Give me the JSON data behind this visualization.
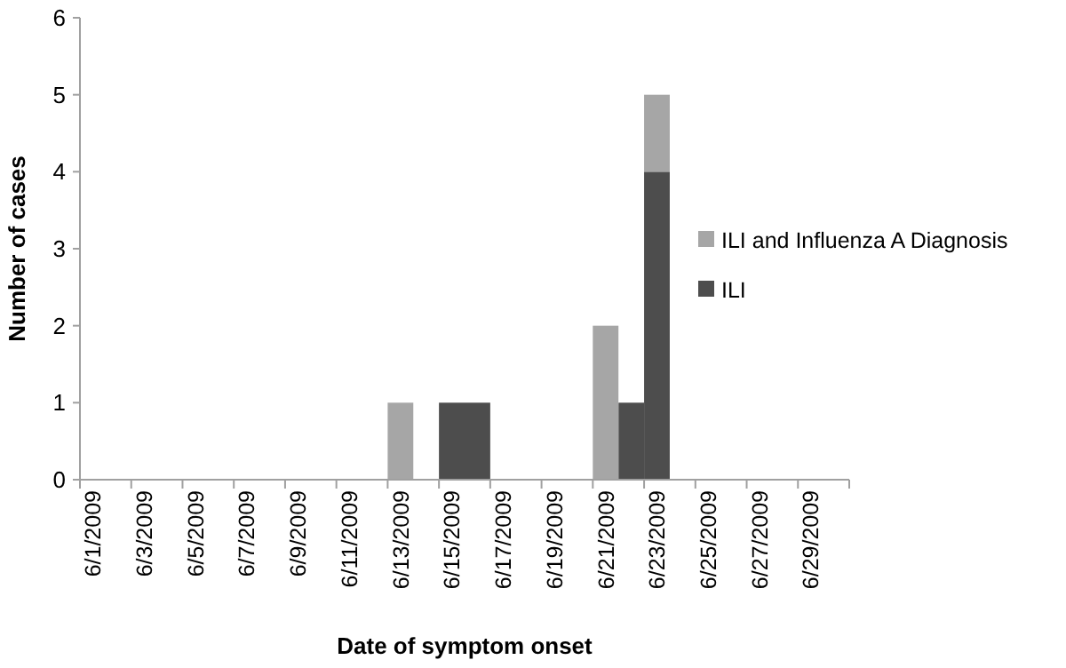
{
  "chart_data": {
    "type": "bar",
    "stacked": true,
    "xlabel": "Date of symptom onset",
    "ylabel": "Number of cases",
    "categories": [
      "6/1/2009",
      null,
      "6/3/2009",
      null,
      "6/5/2009",
      null,
      "6/7/2009",
      null,
      "6/9/2009",
      null,
      "6/11/2009",
      null,
      "6/13/2009",
      null,
      "6/15/2009",
      null,
      "6/17/2009",
      null,
      "6/19/2009",
      null,
      "6/21/2009",
      null,
      "6/23/2009",
      null,
      "6/25/2009",
      null,
      "6/27/2009",
      null,
      "6/29/2009",
      null
    ],
    "series": [
      {
        "name": "ILI",
        "color": "#4d4d4d",
        "values": [
          0,
          0,
          0,
          0,
          0,
          0,
          0,
          0,
          0,
          0,
          0,
          0,
          0,
          0,
          1,
          1,
          0,
          0,
          0,
          0,
          0,
          1,
          4,
          0,
          0,
          0,
          0,
          0,
          0,
          0
        ]
      },
      {
        "name": "ILI and Influenza A Diagnosis",
        "color": "#a6a6a6",
        "values": [
          0,
          0,
          0,
          0,
          0,
          0,
          0,
          0,
          0,
          0,
          0,
          0,
          1,
          0,
          0,
          0,
          0,
          0,
          0,
          0,
          2,
          0,
          1,
          0,
          0,
          0,
          0,
          0,
          0,
          0
        ]
      }
    ],
    "ylim": [
      0,
      6
    ],
    "yticks": [
      0,
      1,
      2,
      3,
      4,
      5,
      6
    ],
    "grid": false,
    "legend": "right"
  }
}
